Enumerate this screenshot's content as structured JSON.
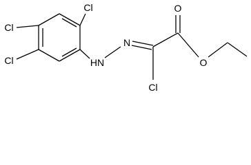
{
  "atoms": [
    {
      "label": "Cl"
    },
    {
      "label": "Cl"
    },
    {
      "label": "Cl"
    },
    {
      "label": "HN"
    },
    {
      "label": "N"
    },
    {
      "label": "Cl"
    },
    {
      "label": "O"
    },
    {
      "label": "O"
    }
  ]
}
